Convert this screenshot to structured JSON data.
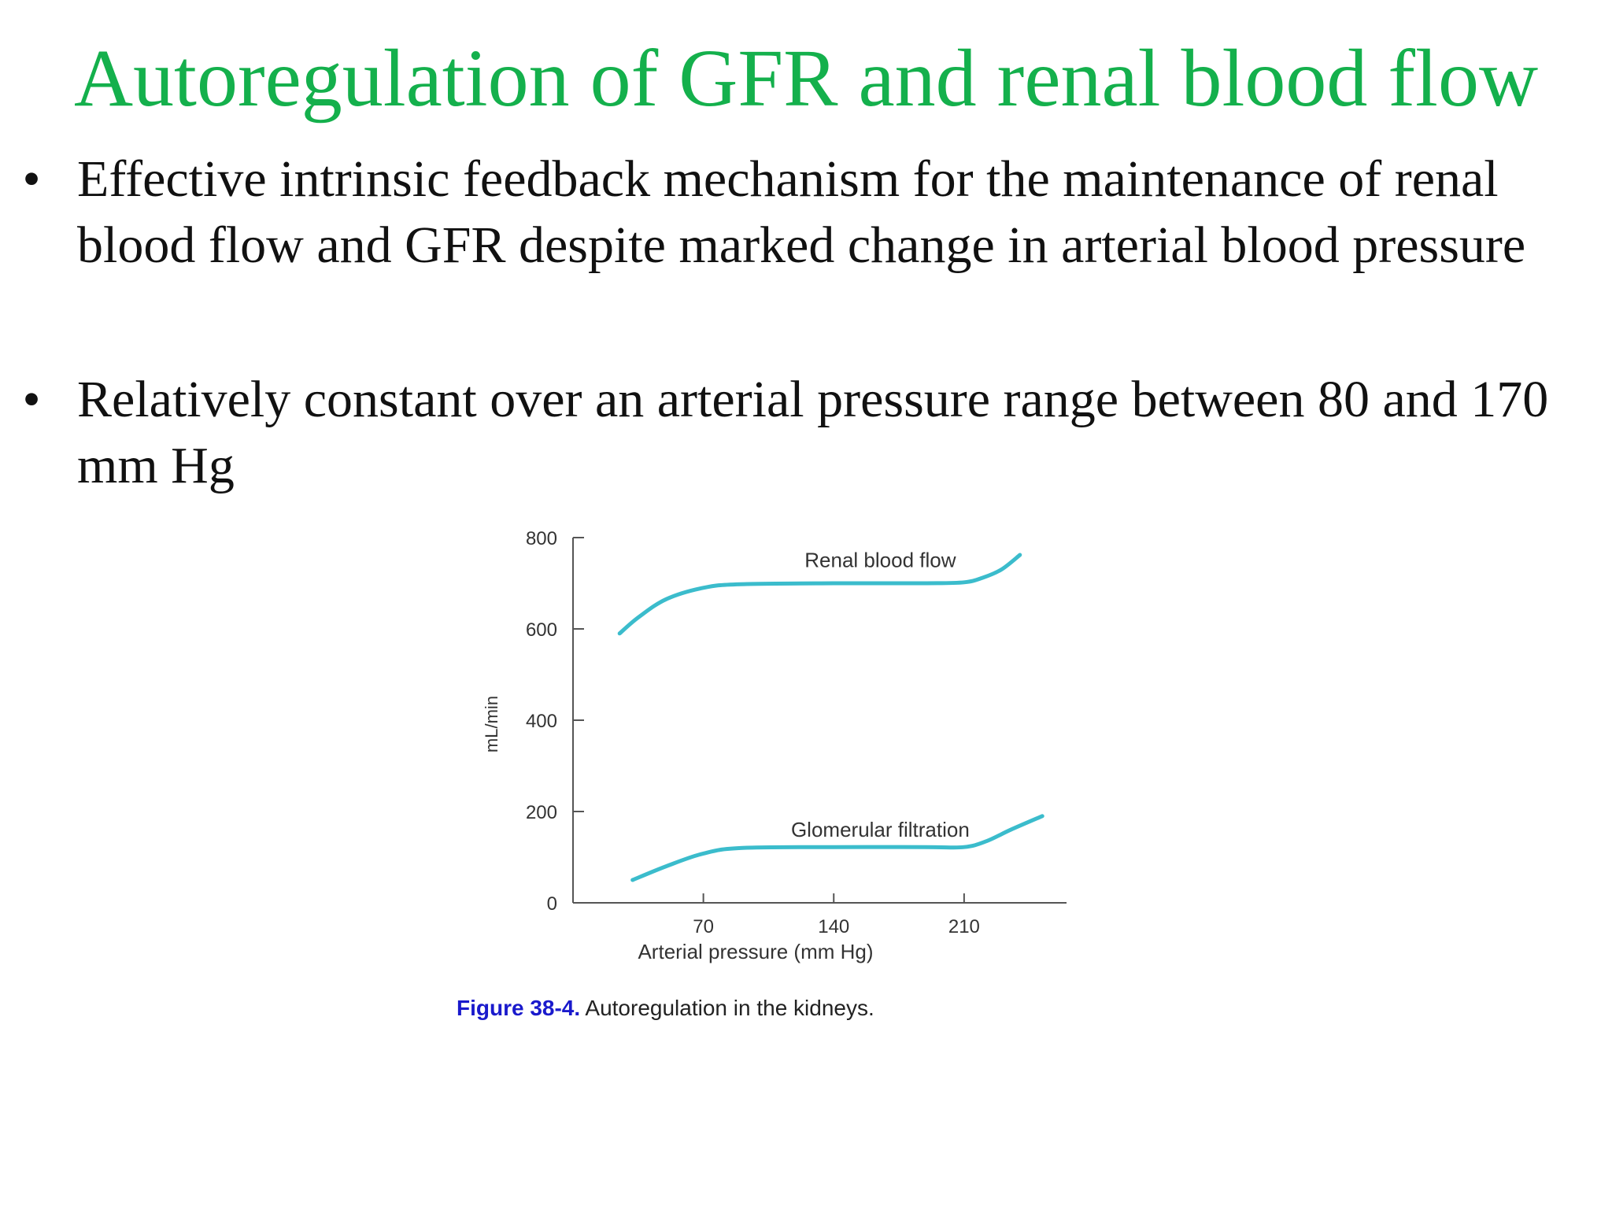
{
  "slide": {
    "title": "Autoregulation of GFR and renal blood flow",
    "bullets": [
      "Effective intrinsic feedback mechanism for the maintenance of renal blood flow and GFR despite marked change in arterial blood pressure",
      "Relatively constant over an arterial pressure range between 80 and 170 mm Hg"
    ],
    "bullet_symbol": "•"
  },
  "figure": {
    "caption_label": "Figure 38-4.",
    "caption_text": " Autoregulation in the kidneys.",
    "caption_label_color": "#1a1acc",
    "caption_text_color": "#222222"
  },
  "chart_data": {
    "type": "line",
    "xlabel": "Arterial pressure (mm Hg)",
    "ylabel": "mL/min",
    "xlim": [
      0,
      265
    ],
    "ylim": [
      0,
      800
    ],
    "xticks": [
      70,
      140,
      210
    ],
    "yticks": [
      0,
      200,
      400,
      600,
      800
    ],
    "grid": false,
    "line_color": "#3bbccc",
    "series": [
      {
        "name": "Renal blood flow",
        "points": [
          [
            25,
            590
          ],
          [
            35,
            625
          ],
          [
            50,
            665
          ],
          [
            70,
            690
          ],
          [
            90,
            698
          ],
          [
            140,
            700
          ],
          [
            190,
            700
          ],
          [
            210,
            702
          ],
          [
            220,
            712
          ],
          [
            230,
            730
          ],
          [
            240,
            762
          ]
        ]
      },
      {
        "name": "Glomerular filtration",
        "points": [
          [
            32,
            50
          ],
          [
            50,
            80
          ],
          [
            70,
            108
          ],
          [
            90,
            120
          ],
          [
            140,
            122
          ],
          [
            190,
            122
          ],
          [
            210,
            122
          ],
          [
            222,
            135
          ],
          [
            235,
            160
          ],
          [
            252,
            190
          ]
        ]
      }
    ]
  }
}
